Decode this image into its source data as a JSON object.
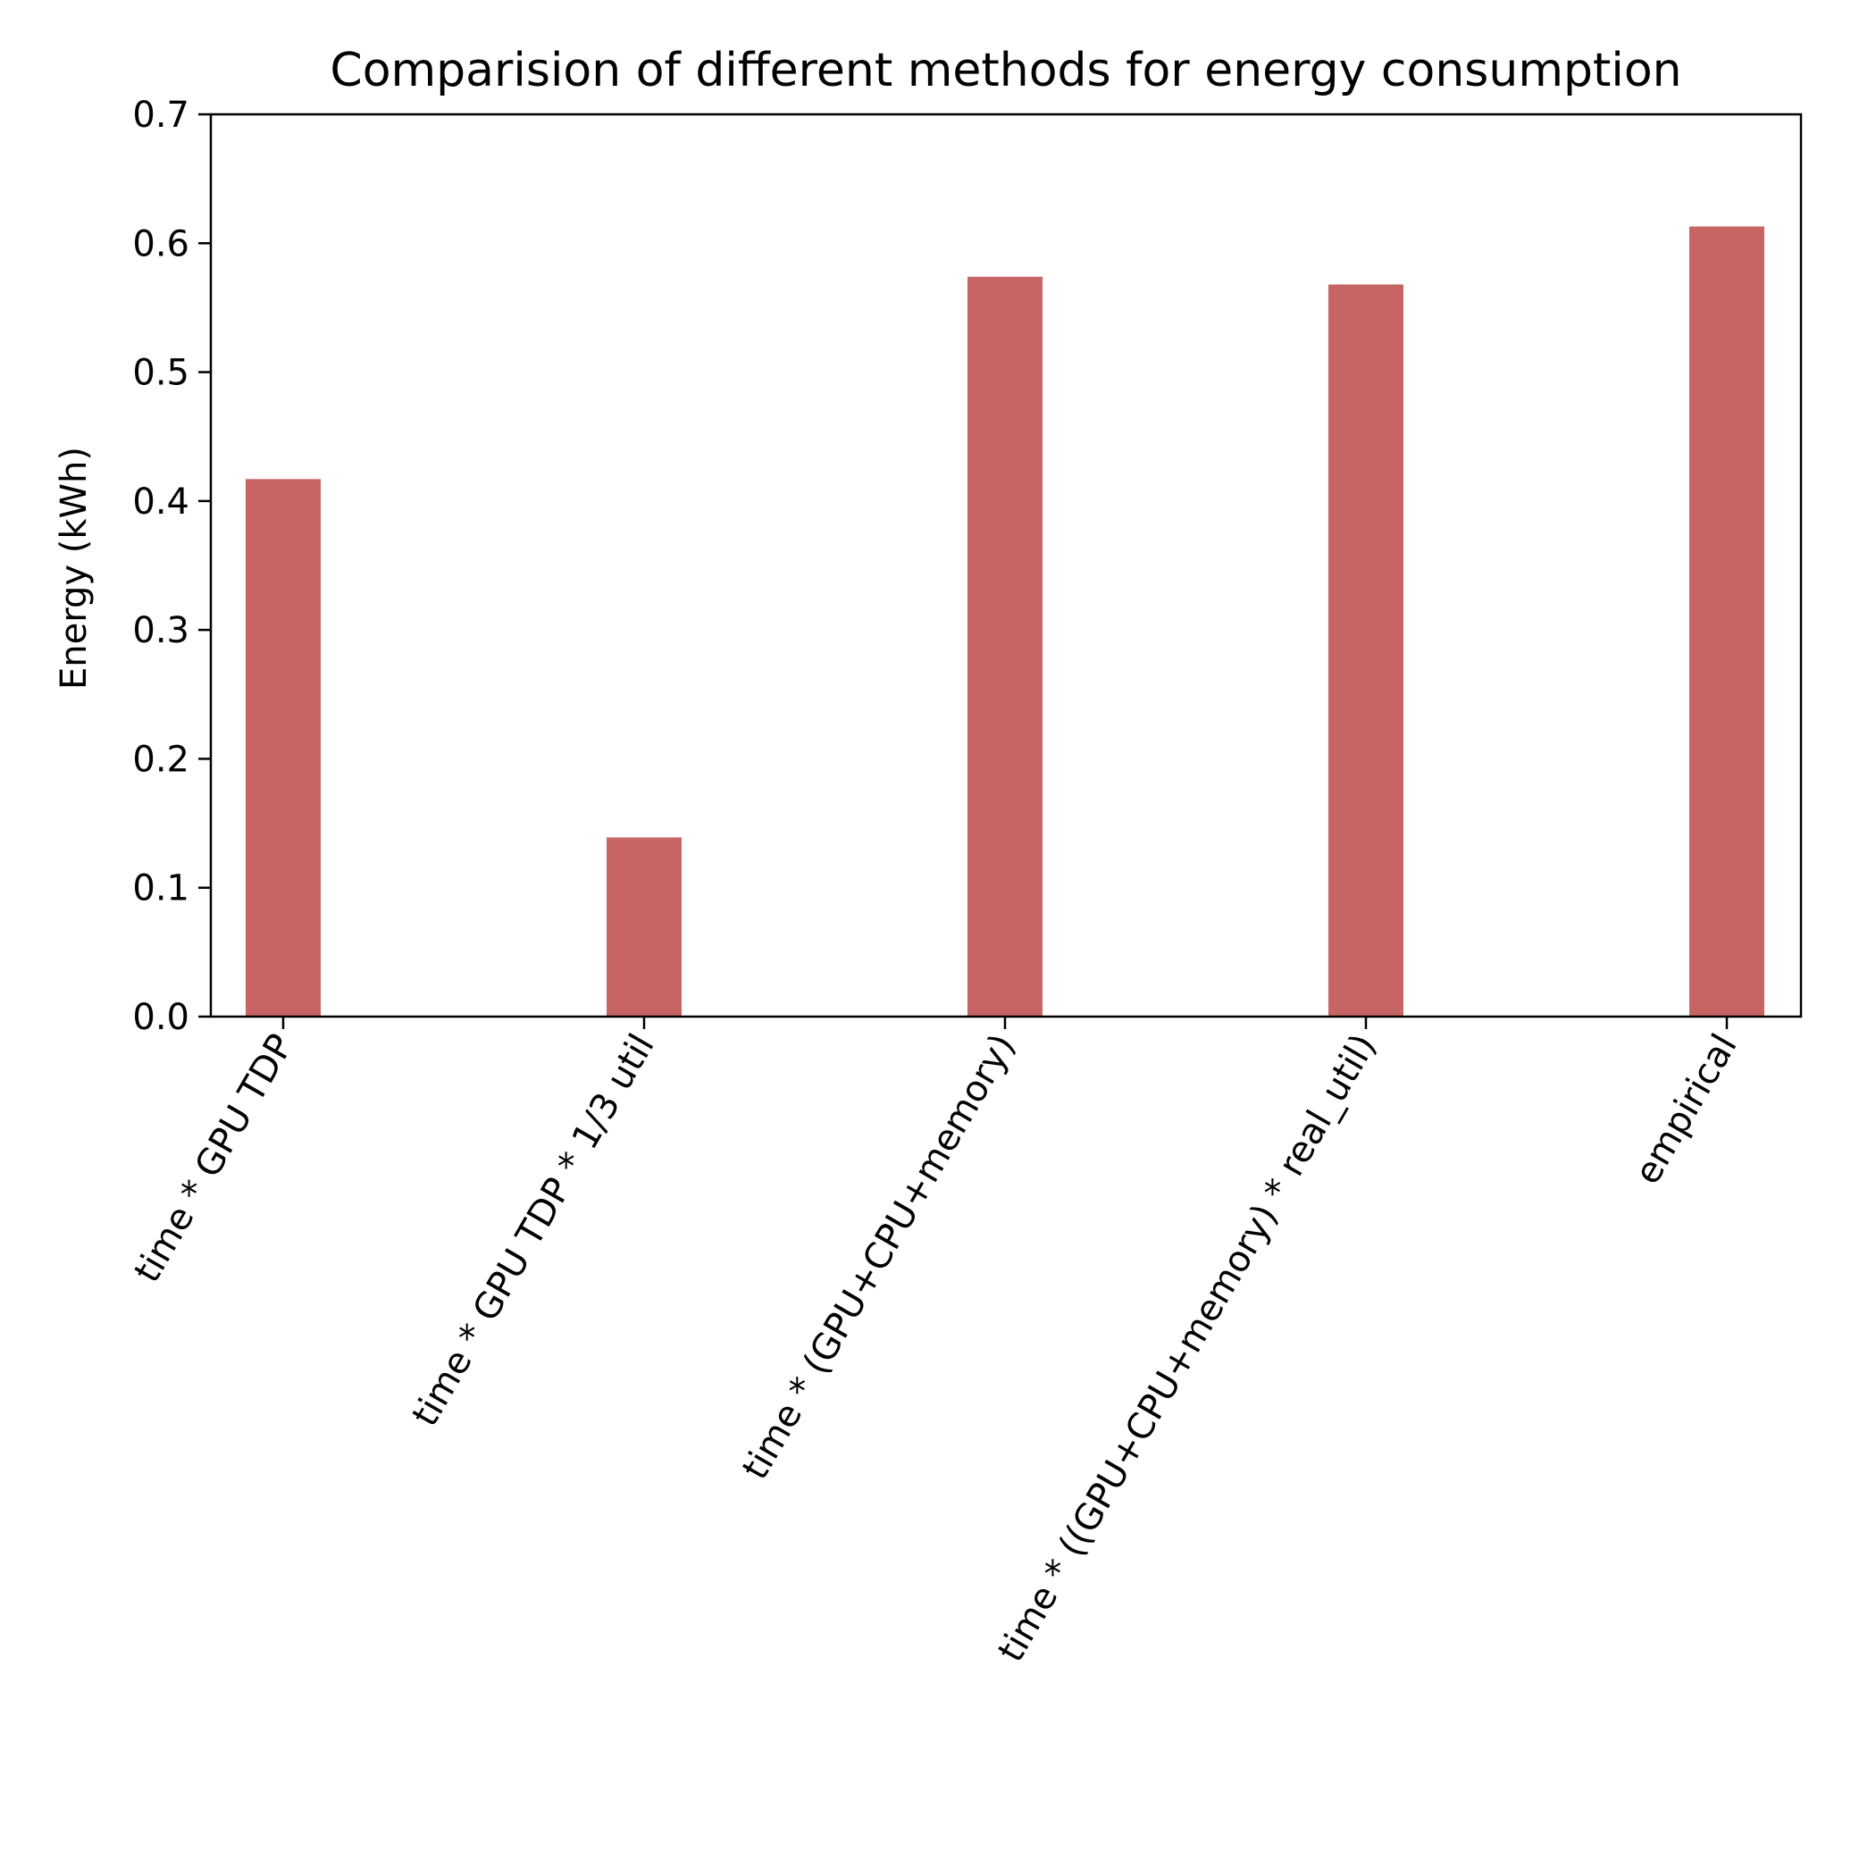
{
  "chart_data": {
    "type": "bar",
    "title": "Comparision of different methods for energy consumption",
    "xlabel": "",
    "ylabel": "Energy (kWh)",
    "categories": [
      "time * GPU TDP",
      "time * GPU TDP * 1/3 util",
      "time * (GPU+CPU+memory)",
      "time * ((GPU+CPU+memory) * real_util)",
      "empirical"
    ],
    "values": [
      0.417,
      0.139,
      0.574,
      0.568,
      0.613
    ],
    "ylim": [
      0,
      0.7
    ],
    "yticks": [
      "0.0",
      "0.1",
      "0.2",
      "0.3",
      "0.4",
      "0.5",
      "0.6",
      "0.7"
    ],
    "grid": false,
    "bar_color": "#c76464"
  }
}
